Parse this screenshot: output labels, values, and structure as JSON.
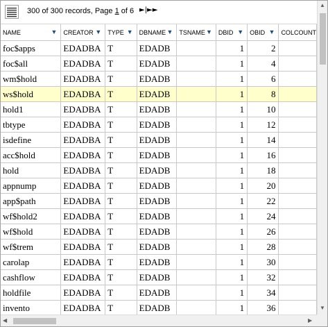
{
  "toolbar": {
    "records_prefix": "300 of 300 records, Page ",
    "page_number": "1",
    "records_suffix": " of 6",
    "nav_symbols": "►|►►"
  },
  "columns": [
    "NAME",
    "CREATOR",
    "TYPE",
    "DBNAME",
    "TSNAME",
    "DBID",
    "OBID",
    "COLCOUNT"
  ],
  "rows": [
    [
      "foc$apps",
      "EDADBA",
      "T",
      "EDADB",
      "",
      "1",
      "2",
      ""
    ],
    [
      "foc$all",
      "EDADBA",
      "T",
      "EDADB",
      "",
      "1",
      "4",
      ""
    ],
    [
      "wm$hold",
      "EDADBA",
      "T",
      "EDADB",
      "",
      "1",
      "6",
      ""
    ],
    [
      "ws$hold",
      "EDADBA",
      "T",
      "EDADB",
      "",
      "1",
      "8",
      ""
    ],
    [
      "hold1",
      "EDADBA",
      "T",
      "EDADB",
      "",
      "1",
      "10",
      ""
    ],
    [
      "tbtype",
      "EDADBA",
      "T",
      "EDADB",
      "",
      "1",
      "12",
      ""
    ],
    [
      "isdefine",
      "EDADBA",
      "T",
      "EDADB",
      "",
      "1",
      "14",
      ""
    ],
    [
      "acc$hold",
      "EDADBA",
      "T",
      "EDADB",
      "",
      "1",
      "16",
      ""
    ],
    [
      "hold",
      "EDADBA",
      "T",
      "EDADB",
      "",
      "1",
      "18",
      ""
    ],
    [
      "appnump",
      "EDADBA",
      "T",
      "EDADB",
      "",
      "1",
      "20",
      ""
    ],
    [
      "app$path",
      "EDADBA",
      "T",
      "EDADB",
      "",
      "1",
      "22",
      ""
    ],
    [
      "wf$hold2",
      "EDADBA",
      "T",
      "EDADB",
      "",
      "1",
      "24",
      ""
    ],
    [
      "wf$hold",
      "EDADBA",
      "T",
      "EDADB",
      "",
      "1",
      "26",
      ""
    ],
    [
      "wf$trem",
      "EDADBA",
      "T",
      "EDADB",
      "",
      "1",
      "28",
      ""
    ],
    [
      "carolap",
      "EDADBA",
      "T",
      "EDADB",
      "",
      "1",
      "30",
      ""
    ],
    [
      "cashflow",
      "EDADBA",
      "T",
      "EDADB",
      "",
      "1",
      "32",
      ""
    ],
    [
      "holdfile",
      "EDADBA",
      "T",
      "EDADB",
      "",
      "1",
      "34",
      ""
    ],
    [
      "invento",
      "EDADBA",
      "T",
      "EDADB",
      "",
      "1",
      "36",
      ""
    ],
    [
      "",
      "",
      "",
      "",
      "",
      "",
      "",
      ""
    ]
  ],
  "selected_row_index": 3,
  "colors": {
    "selected_row": "#ffffcc",
    "sort_caret": "#1f4e79",
    "grid_lines": "#c8c8c8"
  },
  "icons": {
    "menu": "hamburger-menu-icon",
    "sort": "sort-caret-down-icon"
  }
}
